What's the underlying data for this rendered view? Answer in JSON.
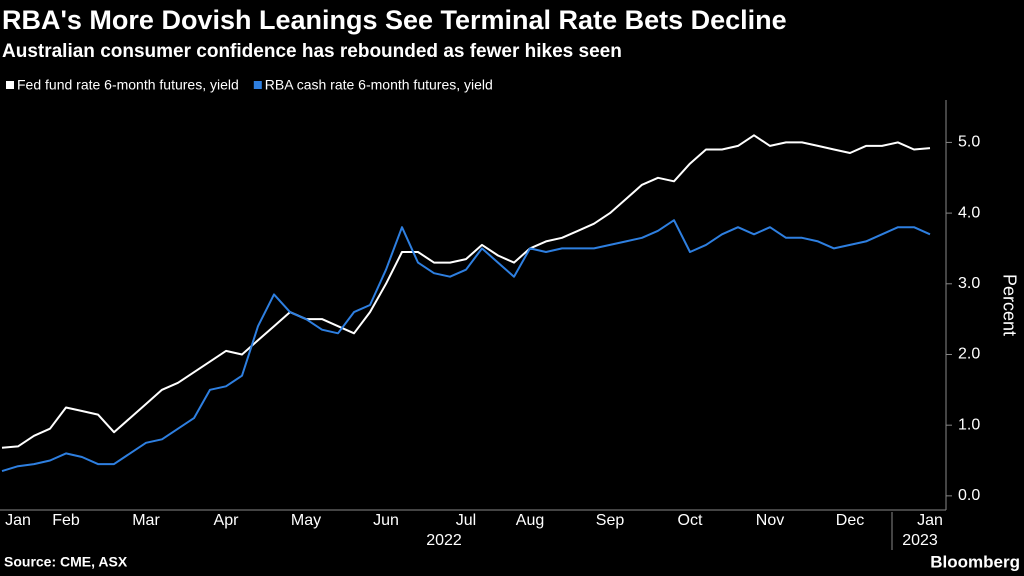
{
  "chart_data": {
    "type": "line",
    "title": "RBA's More Dovish Leanings See Terminal Rate Bets Decline",
    "subtitle": "Australian consumer confidence has rebounded as fewer hikes seen",
    "y_axis_label": "Percent",
    "source": "Source: CME, ASX",
    "brand": "Bloomberg",
    "year_labels": [
      "2022",
      "2023"
    ],
    "categories": [
      null,
      "Jan",
      null,
      null,
      "Feb",
      null,
      null,
      null,
      null,
      "Mar",
      null,
      null,
      null,
      null,
      "Apr",
      null,
      null,
      null,
      null,
      "May",
      null,
      null,
      null,
      null,
      "Jun",
      null,
      null,
      null,
      null,
      "Jul",
      null,
      null,
      null,
      "Aug",
      null,
      null,
      null,
      null,
      "Sep",
      null,
      null,
      null,
      null,
      "Oct",
      null,
      null,
      null,
      null,
      "Nov",
      null,
      null,
      null,
      null,
      "Dec",
      null,
      null,
      null,
      null,
      "Jan"
    ],
    "series": [
      {
        "name": "Fed fund rate 6-month futures, yield",
        "color": "#ffffff",
        "values": [
          0.68,
          0.7,
          0.85,
          0.95,
          1.25,
          1.2,
          1.15,
          0.9,
          1.1,
          1.3,
          1.5,
          1.6,
          1.75,
          1.9,
          2.05,
          2.0,
          2.2,
          2.4,
          2.6,
          2.5,
          2.5,
          2.4,
          2.3,
          2.6,
          3.0,
          3.45,
          3.45,
          3.3,
          3.3,
          3.35,
          3.55,
          3.4,
          3.3,
          3.5,
          3.6,
          3.65,
          3.75,
          3.85,
          4.0,
          4.2,
          4.4,
          4.5,
          4.45,
          4.7,
          4.9,
          4.9,
          4.95,
          5.1,
          4.95,
          5.0,
          5.0,
          4.95,
          4.9,
          4.85,
          4.95,
          4.95,
          5.0,
          4.9,
          4.92
        ]
      },
      {
        "name": "RBA cash rate 6-month futures, yield",
        "color": "#2e7fe0",
        "values": [
          0.35,
          0.42,
          0.45,
          0.5,
          0.6,
          0.55,
          0.45,
          0.45,
          0.6,
          0.75,
          0.8,
          0.95,
          1.1,
          1.5,
          1.55,
          1.7,
          2.4,
          2.85,
          2.6,
          2.5,
          2.35,
          2.3,
          2.6,
          2.7,
          3.2,
          3.8,
          3.3,
          3.15,
          3.1,
          3.2,
          3.5,
          3.3,
          3.1,
          3.5,
          3.45,
          3.5,
          3.5,
          3.5,
          3.55,
          3.6,
          3.65,
          3.75,
          3.9,
          3.45,
          3.55,
          3.7,
          3.8,
          3.7,
          3.8,
          3.65,
          3.65,
          3.6,
          3.5,
          3.55,
          3.6,
          3.7,
          3.8,
          3.8,
          3.7
        ]
      }
    ],
    "ylim": [
      -0.2,
      5.6
    ],
    "yticks": [
      {
        "value": 0,
        "label": "0.0"
      },
      {
        "value": 1,
        "label": "1.0"
      },
      {
        "value": 2,
        "label": "2.0"
      },
      {
        "value": 3,
        "label": "3.0"
      },
      {
        "value": 4,
        "label": "4.0"
      },
      {
        "value": 5,
        "label": "5.0"
      }
    ],
    "grid": false
  }
}
